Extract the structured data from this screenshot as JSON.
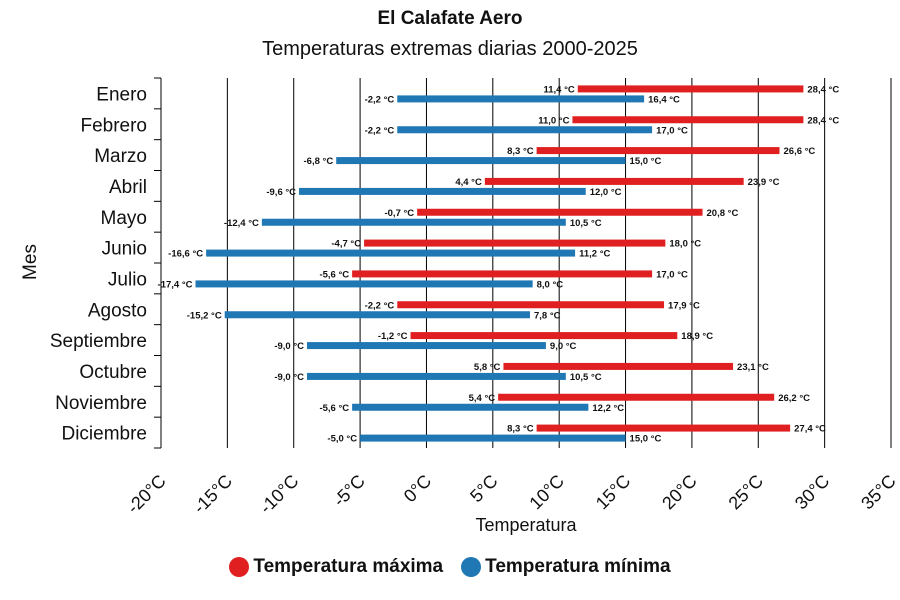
{
  "chart_data": {
    "type": "bar",
    "orientation": "horizontal-range",
    "title": "El Calafate Aero",
    "subtitle": "Temperaturas extremas diarias 2000-2025",
    "xlabel": "Temperatura",
    "ylabel": "Mes",
    "xlim": [
      -20,
      35
    ],
    "xticks": [
      -20,
      -15,
      -10,
      -5,
      0,
      5,
      10,
      15,
      20,
      25,
      30,
      35
    ],
    "xtick_labels": [
      "-20°C",
      "-15°C",
      "-10°C",
      "-5°C",
      "0°C",
      "5°C",
      "10°C",
      "15°C",
      "20°C",
      "25°C",
      "30°C",
      "35°C"
    ],
    "grid": "vertical",
    "legend_position": "bottom",
    "categories": [
      "Enero",
      "Febrero",
      "Marzo",
      "Abril",
      "Mayo",
      "Junio",
      "Julio",
      "Agosto",
      "Septiembre",
      "Octubre",
      "Noviembre",
      "Diciembre"
    ],
    "series": [
      {
        "name": "Temperatura máxima",
        "color": "#e02020",
        "low": [
          11.4,
          11.0,
          8.3,
          4.4,
          -0.7,
          -4.7,
          -5.6,
          -2.2,
          -1.2,
          5.8,
          5.4,
          8.3
        ],
        "high": [
          28.4,
          28.4,
          26.6,
          23.9,
          20.8,
          18.0,
          17.0,
          17.9,
          18.9,
          23.1,
          26.2,
          27.4
        ]
      },
      {
        "name": "Temperatura mínima",
        "color": "#1f77b4",
        "low": [
          -2.2,
          -2.2,
          -6.8,
          -9.6,
          -12.4,
          -16.6,
          -17.4,
          -15.2,
          -9.0,
          -9.0,
          -5.6,
          -5.0
        ],
        "high": [
          16.4,
          17.0,
          15.0,
          12.0,
          10.5,
          11.2,
          8.0,
          7.8,
          9.0,
          10.5,
          12.2,
          15.0
        ]
      }
    ],
    "unit_suffix": " °C"
  }
}
